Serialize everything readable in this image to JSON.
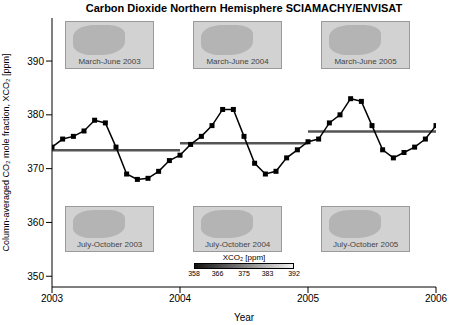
{
  "chart_data": {
    "type": "line",
    "title": "Carbon Dioxide Northern Hemisphere SCIAMACHY/ENVISAT",
    "x_label": "Year",
    "y_label": "Column-averaged CO₂ mole fraction, XCO₂ [ppm]",
    "x": [
      2003.0,
      2003.083,
      2003.167,
      2003.25,
      2003.333,
      2003.417,
      2003.5,
      2003.583,
      2003.667,
      2003.75,
      2003.833,
      2003.917,
      2004.0,
      2004.083,
      2004.167,
      2004.25,
      2004.333,
      2004.417,
      2004.5,
      2004.583,
      2004.667,
      2004.75,
      2004.833,
      2004.917,
      2005.0,
      2005.083,
      2005.167,
      2005.25,
      2005.333,
      2005.417,
      2005.5,
      2005.583,
      2005.667,
      2005.75,
      2005.833,
      2005.917,
      2006.0
    ],
    "values": [
      374.0,
      375.5,
      376.0,
      377.0,
      379.0,
      378.5,
      374.0,
      369.0,
      368.0,
      368.2,
      369.5,
      371.5,
      372.5,
      374.5,
      376.0,
      378.0,
      381.0,
      381.0,
      376.0,
      371.0,
      369.0,
      369.5,
      372.0,
      373.5,
      375.0,
      375.5,
      378.5,
      380.0,
      383.0,
      382.5,
      378.0,
      373.5,
      372.0,
      373.0,
      374.0,
      375.5,
      378.0
    ],
    "color": "#000000",
    "marker": "square",
    "reference_lines": [
      {
        "x": [
          2003,
          2004
        ],
        "y": 373.4,
        "color": "#555555"
      },
      {
        "x": [
          2004,
          2005
        ],
        "y": 374.7,
        "color": "#555555"
      },
      {
        "x": [
          2005,
          2006
        ],
        "y": 376.9,
        "color": "#555555"
      }
    ],
    "xlim": [
      2003,
      2006
    ],
    "xticks": [
      2003,
      2004,
      2005,
      2006
    ],
    "ylim": [
      348,
      398
    ],
    "yticks": [
      350,
      360,
      370,
      380,
      390
    ],
    "grid": false,
    "insets": {
      "top": [
        "March-June 2003",
        "March-June 2004",
        "March-June 2005"
      ],
      "bottom": [
        "July-October 2003",
        "July-October 2004",
        "July-October 2005"
      ]
    },
    "colorbar": {
      "label": "XCO₂ [ppm]",
      "range": [
        358,
        392
      ],
      "ticks": [
        358,
        366,
        375,
        383,
        392
      ]
    }
  }
}
